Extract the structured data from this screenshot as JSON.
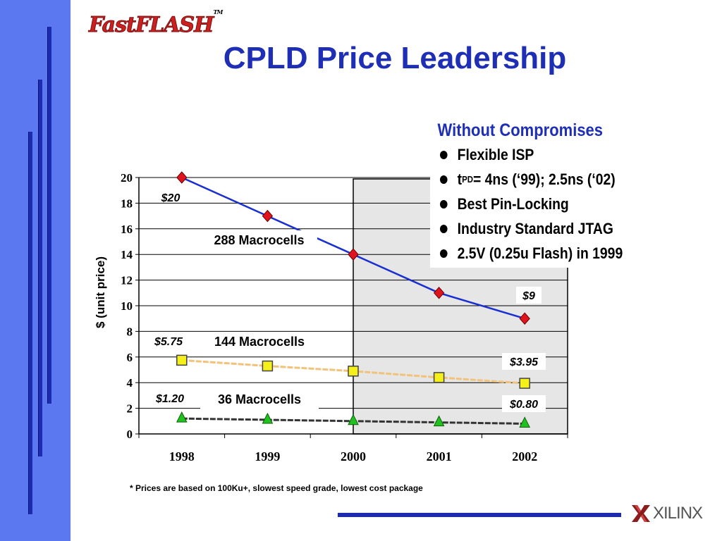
{
  "header": {
    "logo_text": "FastFLASH",
    "logo_tm": "TM",
    "title": "CPLD Price Leadership"
  },
  "features": {
    "heading": "Without Compromises",
    "items": [
      {
        "text": "Flexible ISP"
      },
      {
        "pre": "t",
        "sub": "PD",
        "post": " = 4ns (‘99); 2.5ns (‘02)"
      },
      {
        "text": "Best Pin-Locking"
      },
      {
        "text": "Industry Standard JTAG"
      },
      {
        "text": "2.5V (0.25u Flash) in 1999"
      }
    ]
  },
  "chart_data": {
    "type": "line",
    "title": "",
    "xlabel": "",
    "ylabel": "$  (unit price)",
    "categories": [
      "1998",
      "1999",
      "2000",
      "2001",
      "2002"
    ],
    "ylim": [
      0,
      20
    ],
    "yticks": [
      0,
      2,
      4,
      6,
      8,
      10,
      12,
      14,
      16,
      18,
      20
    ],
    "grid": true,
    "shaded_from_category": "2000",
    "series": [
      {
        "name": "288 Macrocells",
        "values": [
          20,
          17,
          14,
          11,
          9
        ],
        "color": "#1a2fd0",
        "marker_color": "#e0141e",
        "marker": "diamond",
        "dashed": false
      },
      {
        "name": "144 Macrocells",
        "values": [
          5.75,
          5.3,
          4.9,
          4.4,
          3.95
        ],
        "color": "#f2c27a",
        "marker_color": "#f5ef1a",
        "marker": "square",
        "dashed": true
      },
      {
        "name": "36 Macrocells",
        "values": [
          1.2,
          1.1,
          1.0,
          0.9,
          0.8
        ],
        "color": "#333333",
        "marker_color": "#22c21e",
        "marker": "triangle",
        "dashed": true
      }
    ],
    "annotations": [
      "$20",
      "$9",
      "$5.75",
      "$3.95",
      "$1.20",
      "$0.80"
    ]
  },
  "footnote": "* Prices are based on 100Ku+, slowest speed grade, lowest cost package",
  "footer": {
    "company": "XILINX"
  },
  "colors": {
    "sidebar": "#5b78f0",
    "accent": "#1e2fb5"
  }
}
